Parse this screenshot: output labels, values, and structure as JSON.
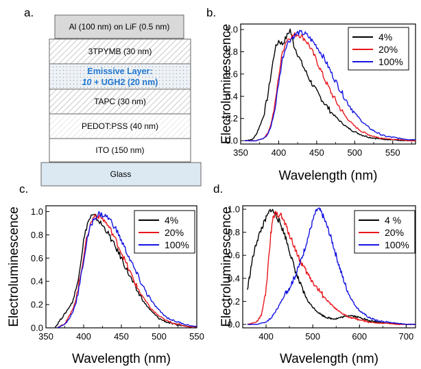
{
  "panel_labels": [
    "a.",
    "b.",
    "c.",
    "d."
  ],
  "device_stack": {
    "layers": [
      {
        "label": "Al (100 nm) on LiF (0.5 nm)",
        "fill": "#d9d9d9",
        "pattern": "none"
      },
      {
        "label": "3TPYMB (30 nm)",
        "fill": "#ffffff",
        "pattern": "hatch"
      },
      {
        "label_line1": "Emissive Layer:",
        "label_line2_italic": "10",
        "label_line2_rest": " + UGH2 (20 nm)",
        "fill": "#eef2f6",
        "pattern": "dots",
        "text_color": "#1f77d0"
      },
      {
        "label": "TAPC (30 nm)",
        "fill": "#ffffff",
        "pattern": "hatch"
      },
      {
        "label": "PEDOT:PSS  (40 nm)",
        "fill": "#ffffff",
        "pattern": "hatch-light"
      },
      {
        "label": "ITO (150 nm)",
        "fill": "#ffffff",
        "pattern": "none"
      },
      {
        "label": "Glass",
        "fill": "#dce8f2",
        "pattern": "none"
      }
    ]
  },
  "colors": {
    "4": "#000000",
    "20": "#e8151b",
    "100": "#1414e0"
  },
  "chart_data": [
    {
      "panel": "b.",
      "type": "line",
      "xlabel": "Wavelength (nm)",
      "ylabel": "Electroluminescence",
      "xlim": [
        350,
        580
      ],
      "ylim": [
        -0.03,
        1.05
      ],
      "xticks": [
        350,
        400,
        450,
        500,
        550
      ],
      "yticks": [
        0.0,
        0.2,
        0.4,
        0.6,
        0.8,
        1.0
      ],
      "ytick_labels": [
        "0.0",
        "0.2",
        "0.4",
        "0.6",
        "0.8",
        "1.0"
      ],
      "legend": [
        "4%",
        "20%",
        "100%"
      ],
      "series": [
        {
          "name": "4%",
          "color": "#000000",
          "x": [
            355,
            365,
            370,
            375,
            380,
            385,
            390,
            395,
            400,
            405,
            410,
            415,
            420,
            425,
            430,
            435,
            440,
            445,
            450,
            460,
            470,
            480,
            490,
            500,
            510,
            520,
            530,
            540,
            550,
            560,
            570,
            580
          ],
          "y": [
            0.0,
            0.01,
            0.05,
            0.13,
            0.22,
            0.38,
            0.6,
            0.82,
            0.9,
            0.87,
            0.93,
            1.0,
            0.86,
            0.78,
            0.7,
            0.63,
            0.56,
            0.5,
            0.44,
            0.34,
            0.25,
            0.18,
            0.12,
            0.08,
            0.05,
            0.03,
            0.02,
            0.01,
            0.01,
            0.0,
            0.0,
            0.0
          ]
        },
        {
          "name": "20%",
          "color": "#e8151b",
          "x": [
            355,
            370,
            380,
            385,
            390,
            395,
            400,
            405,
            410,
            415,
            420,
            425,
            430,
            435,
            440,
            450,
            460,
            470,
            480,
            490,
            500,
            510,
            520,
            530,
            540,
            550,
            560,
            570,
            580
          ],
          "y": [
            0.0,
            0.0,
            0.02,
            0.06,
            0.15,
            0.32,
            0.58,
            0.8,
            0.9,
            0.93,
            0.95,
            0.96,
            0.94,
            0.91,
            0.86,
            0.72,
            0.56,
            0.42,
            0.3,
            0.2,
            0.13,
            0.08,
            0.05,
            0.03,
            0.02,
            0.01,
            0.01,
            0.0,
            0.0
          ]
        },
        {
          "name": "100%",
          "color": "#1414e0",
          "x": [
            355,
            370,
            380,
            385,
            390,
            395,
            400,
            405,
            410,
            415,
            420,
            425,
            430,
            435,
            440,
            450,
            460,
            470,
            480,
            490,
            500,
            510,
            520,
            530,
            540,
            550,
            560,
            570,
            580
          ],
          "y": [
            0.0,
            0.0,
            0.02,
            0.05,
            0.13,
            0.28,
            0.52,
            0.74,
            0.86,
            0.91,
            0.94,
            0.97,
            0.97,
            0.96,
            0.93,
            0.85,
            0.74,
            0.6,
            0.47,
            0.35,
            0.25,
            0.17,
            0.11,
            0.07,
            0.04,
            0.03,
            0.02,
            0.01,
            0.01
          ]
        }
      ]
    },
    {
      "panel": "c.",
      "type": "line",
      "xlabel": "Wavelength (nm)",
      "ylabel": "Electroluminescence",
      "xlim": [
        350,
        550
      ],
      "ylim": [
        0.0,
        1.05
      ],
      "xticks": [
        350,
        400,
        450,
        500,
        550
      ],
      "yticks": [
        0.0,
        0.2,
        0.4,
        0.6,
        0.8,
        1.0
      ],
      "ytick_labels": [
        "0.0",
        "0.2",
        "0.4",
        "0.6",
        "0.8",
        "1.0"
      ],
      "legend": [
        "4%",
        "20%",
        "100%"
      ],
      "series": [
        {
          "name": "4%",
          "color": "#000000",
          "x": [
            362,
            368,
            375,
            380,
            385,
            390,
            395,
            400,
            405,
            410,
            415,
            420,
            425,
            430,
            435,
            440,
            445,
            450,
            460,
            470,
            480,
            490,
            500,
            510,
            520,
            530,
            540,
            550
          ],
          "y": [
            0.0,
            0.06,
            0.12,
            0.17,
            0.22,
            0.33,
            0.52,
            0.75,
            0.9,
            0.96,
            0.96,
            0.92,
            0.88,
            0.84,
            0.78,
            0.72,
            0.66,
            0.6,
            0.46,
            0.33,
            0.22,
            0.14,
            0.08,
            0.05,
            0.03,
            0.02,
            0.01,
            0.01
          ]
        },
        {
          "name": "20%",
          "color": "#e8151b",
          "x": [
            365,
            375,
            380,
            385,
            390,
            395,
            400,
            405,
            410,
            415,
            420,
            425,
            430,
            435,
            440,
            445,
            450,
            460,
            470,
            480,
            490,
            500,
            510,
            520,
            530,
            540,
            550
          ],
          "y": [
            0.0,
            0.04,
            0.09,
            0.15,
            0.25,
            0.42,
            0.62,
            0.8,
            0.91,
            0.97,
            0.96,
            0.94,
            0.9,
            0.85,
            0.79,
            0.72,
            0.65,
            0.5,
            0.36,
            0.25,
            0.16,
            0.1,
            0.06,
            0.04,
            0.02,
            0.01,
            0.01
          ]
        },
        {
          "name": "100%",
          "color": "#1414e0",
          "x": [
            365,
            375,
            380,
            385,
            390,
            395,
            400,
            405,
            410,
            415,
            420,
            425,
            430,
            435,
            440,
            445,
            450,
            460,
            470,
            480,
            490,
            500,
            510,
            520,
            530,
            540,
            550
          ],
          "y": [
            0.0,
            0.03,
            0.07,
            0.13,
            0.22,
            0.38,
            0.58,
            0.77,
            0.89,
            0.95,
            0.98,
            0.97,
            0.96,
            0.93,
            0.88,
            0.82,
            0.75,
            0.61,
            0.47,
            0.34,
            0.23,
            0.15,
            0.09,
            0.06,
            0.04,
            0.02,
            0.01
          ]
        }
      ]
    },
    {
      "panel": "d.",
      "type": "line",
      "xlabel": "Wavelength (nm)",
      "ylabel": "Electroluminescence",
      "xlim": [
        350,
        720
      ],
      "ylim": [
        -0.03,
        1.03
      ],
      "xticks": [
        400,
        500,
        600,
        700
      ],
      "yticks": [
        0.0,
        0.2,
        0.4,
        0.6,
        0.8,
        1.0
      ],
      "ytick_labels": [
        "0.0",
        "0.2",
        "0.4",
        "0.6",
        "0.8",
        "1.0"
      ],
      "legend": [
        "4 %",
        "20%",
        "100%"
      ],
      "series": [
        {
          "name": "4 %",
          "color": "#000000",
          "x": [
            360,
            370,
            380,
            390,
            400,
            405,
            410,
            415,
            420,
            430,
            440,
            450,
            460,
            470,
            480,
            490,
            500,
            510,
            520,
            530,
            540,
            550,
            560,
            570,
            580,
            590,
            600,
            610,
            620,
            640,
            660,
            680,
            700,
            720
          ],
          "y": [
            0.3,
            0.55,
            0.72,
            0.83,
            0.92,
            0.96,
            1.0,
            0.98,
            0.96,
            0.88,
            0.78,
            0.64,
            0.5,
            0.38,
            0.28,
            0.2,
            0.15,
            0.11,
            0.08,
            0.06,
            0.05,
            0.05,
            0.06,
            0.07,
            0.08,
            0.07,
            0.06,
            0.05,
            0.03,
            0.02,
            0.01,
            0.01,
            0.0,
            0.0
          ]
        },
        {
          "name": "20%",
          "color": "#e8151b",
          "x": [
            360,
            380,
            390,
            400,
            405,
            410,
            415,
            420,
            425,
            430,
            440,
            450,
            460,
            470,
            480,
            490,
            500,
            510,
            520,
            530,
            540,
            550,
            560,
            570,
            580,
            590,
            600,
            620,
            640,
            660,
            680,
            700,
            720
          ],
          "y": [
            0.0,
            0.02,
            0.08,
            0.3,
            0.55,
            0.78,
            0.92,
            0.96,
            0.95,
            0.96,
            0.88,
            0.78,
            0.68,
            0.58,
            0.5,
            0.43,
            0.37,
            0.31,
            0.26,
            0.21,
            0.17,
            0.13,
            0.1,
            0.08,
            0.06,
            0.05,
            0.04,
            0.02,
            0.01,
            0.01,
            0.0,
            0.0,
            0.0
          ]
        },
        {
          "name": "100%",
          "color": "#1414e0",
          "x": [
            360,
            380,
            400,
            410,
            420,
            430,
            440,
            450,
            460,
            470,
            480,
            490,
            500,
            505,
            510,
            515,
            520,
            530,
            540,
            550,
            560,
            570,
            580,
            590,
            600,
            620,
            640,
            660,
            680,
            700,
            720
          ],
          "y": [
            0.0,
            0.0,
            0.02,
            0.05,
            0.11,
            0.18,
            0.26,
            0.32,
            0.4,
            0.5,
            0.62,
            0.76,
            0.9,
            0.96,
            1.0,
            0.99,
            0.96,
            0.86,
            0.74,
            0.6,
            0.46,
            0.34,
            0.24,
            0.17,
            0.12,
            0.06,
            0.03,
            0.02,
            0.01,
            0.0,
            0.0
          ]
        }
      ]
    }
  ]
}
